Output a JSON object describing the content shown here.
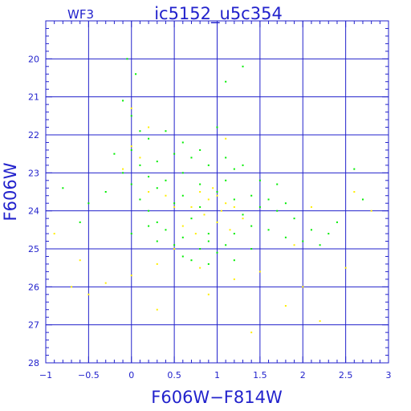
{
  "chart_data": {
    "type": "scatter",
    "title": "ic5152_u5c354",
    "subtitle": "WF3",
    "xlabel": "F606W−F814W",
    "ylabel": "F606W",
    "xlim": [
      -1,
      3
    ],
    "ylim": [
      28,
      19
    ],
    "y_inverted": true,
    "grid": true,
    "x_ticks": [
      {
        "value": -1,
        "label": "−1"
      },
      {
        "value": -0.5,
        "label": "−0.5"
      },
      {
        "value": 0,
        "label": "0"
      },
      {
        "value": 0.5,
        "label": "0.5"
      },
      {
        "value": 1,
        "label": "1"
      },
      {
        "value": 1.5,
        "label": "1.5"
      },
      {
        "value": 2,
        "label": "2"
      },
      {
        "value": 2.5,
        "label": "2.5"
      },
      {
        "value": 3,
        "label": "3"
      }
    ],
    "y_ticks": [
      {
        "value": 20,
        "label": "20"
      },
      {
        "value": 21,
        "label": "21"
      },
      {
        "value": 22,
        "label": "22"
      },
      {
        "value": 23,
        "label": "23"
      },
      {
        "value": 24,
        "label": "24"
      },
      {
        "value": 25,
        "label": "25"
      },
      {
        "value": 26,
        "label": "26"
      },
      {
        "value": 27,
        "label": "27"
      },
      {
        "value": 28,
        "label": "28"
      }
    ],
    "series": [
      {
        "color": "#00ee00",
        "points": [
          [
            0.0,
            22.4
          ],
          [
            0.1,
            22.8
          ],
          [
            0.2,
            23.1
          ],
          [
            0.3,
            23.4
          ],
          [
            0.5,
            23.8
          ],
          [
            0.7,
            24.2
          ],
          [
            0.9,
            24.6
          ],
          [
            1.1,
            24.9
          ],
          [
            0.8,
            25.0
          ],
          [
            0.6,
            24.7
          ],
          [
            0.4,
            24.5
          ],
          [
            0.3,
            24.3
          ],
          [
            0.2,
            24.0
          ],
          [
            0.1,
            23.7
          ],
          [
            0.0,
            23.3
          ],
          [
            -0.1,
            23.0
          ],
          [
            0.6,
            23.6
          ],
          [
            0.8,
            23.9
          ],
          [
            1.0,
            24.3
          ],
          [
            1.2,
            24.6
          ],
          [
            1.3,
            24.1
          ],
          [
            1.5,
            23.9
          ],
          [
            1.7,
            24.0
          ],
          [
            1.9,
            24.2
          ],
          [
            2.1,
            24.5
          ],
          [
            2.3,
            24.6
          ],
          [
            1.1,
            23.2
          ],
          [
            1.2,
            22.9
          ],
          [
            0.9,
            22.8
          ],
          [
            0.7,
            22.6
          ],
          [
            0.5,
            22.5
          ],
          [
            0.3,
            22.7
          ],
          [
            0.1,
            21.9
          ],
          [
            0.0,
            21.5
          ],
          [
            -0.1,
            21.1
          ],
          [
            0.05,
            20.4
          ],
          [
            -0.05,
            20.0
          ],
          [
            1.0,
            21.8
          ],
          [
            1.1,
            20.6
          ],
          [
            1.3,
            20.2
          ],
          [
            0.9,
            24.8
          ],
          [
            1.0,
            25.1
          ],
          [
            0.7,
            25.3
          ],
          [
            0.5,
            24.9
          ],
          [
            0.2,
            24.4
          ],
          [
            1.4,
            24.4
          ],
          [
            1.6,
            24.5
          ],
          [
            1.8,
            24.7
          ],
          [
            2.0,
            24.8
          ],
          [
            2.2,
            24.9
          ],
          [
            0.4,
            23.2
          ],
          [
            0.6,
            23.0
          ],
          [
            0.8,
            23.3
          ],
          [
            1.0,
            23.5
          ],
          [
            1.2,
            23.7
          ],
          [
            1.4,
            23.6
          ],
          [
            1.6,
            23.7
          ],
          [
            1.8,
            23.8
          ],
          [
            2.4,
            24.3
          ],
          [
            2.6,
            22.9
          ],
          [
            -0.2,
            22.5
          ],
          [
            -0.3,
            23.5
          ],
          [
            -0.5,
            23.8
          ],
          [
            -0.6,
            24.3
          ],
          [
            -0.8,
            23.4
          ],
          [
            0.0,
            24.6
          ],
          [
            0.3,
            24.8
          ],
          [
            0.6,
            25.2
          ],
          [
            0.9,
            25.4
          ],
          [
            1.2,
            25.3
          ],
          [
            1.4,
            25.0
          ],
          [
            0.2,
            22.1
          ],
          [
            0.4,
            21.9
          ],
          [
            0.6,
            22.2
          ],
          [
            0.8,
            22.4
          ],
          [
            1.1,
            22.6
          ],
          [
            1.3,
            22.8
          ],
          [
            1.5,
            23.2
          ],
          [
            1.7,
            23.3
          ],
          [
            2.7,
            23.7
          ]
        ]
      },
      {
        "color": "#ffee00",
        "points": [
          [
            0.9,
            23.7
          ],
          [
            1.0,
            23.6
          ],
          [
            1.1,
            23.8
          ],
          [
            0.8,
            23.5
          ],
          [
            1.2,
            23.9
          ],
          [
            0.95,
            23.4
          ],
          [
            1.05,
            24.0
          ],
          [
            0.7,
            23.9
          ],
          [
            1.3,
            24.2
          ],
          [
            0.85,
            24.1
          ],
          [
            0.6,
            24.4
          ],
          [
            1.0,
            24.3
          ],
          [
            0.75,
            24.6
          ],
          [
            0.5,
            23.9
          ],
          [
            1.15,
            24.5
          ],
          [
            0.4,
            23.6
          ],
          [
            0.0,
            22.3
          ],
          [
            0.1,
            22.6
          ],
          [
            -0.1,
            22.9
          ],
          [
            0.2,
            23.5
          ],
          [
            0.5,
            25.0
          ],
          [
            0.8,
            25.5
          ],
          [
            1.2,
            25.8
          ],
          [
            0.3,
            25.4
          ],
          [
            -0.3,
            25.9
          ],
          [
            -0.6,
            25.3
          ],
          [
            -0.9,
            24.6
          ],
          [
            -0.5,
            26.2
          ],
          [
            0.0,
            25.7
          ],
          [
            0.3,
            26.6
          ],
          [
            1.5,
            25.6
          ],
          [
            2.0,
            26.0
          ],
          [
            2.2,
            26.9
          ],
          [
            1.8,
            26.5
          ],
          [
            2.5,
            25.5
          ],
          [
            2.8,
            24.0
          ],
          [
            2.6,
            23.5
          ],
          [
            2.1,
            23.9
          ],
          [
            1.9,
            24.9
          ],
          [
            0.2,
            21.8
          ],
          [
            0.0,
            21.3
          ],
          [
            1.1,
            22.1
          ],
          [
            -0.7,
            26.0
          ],
          [
            0.9,
            26.2
          ],
          [
            1.4,
            27.2
          ]
        ]
      }
    ]
  }
}
